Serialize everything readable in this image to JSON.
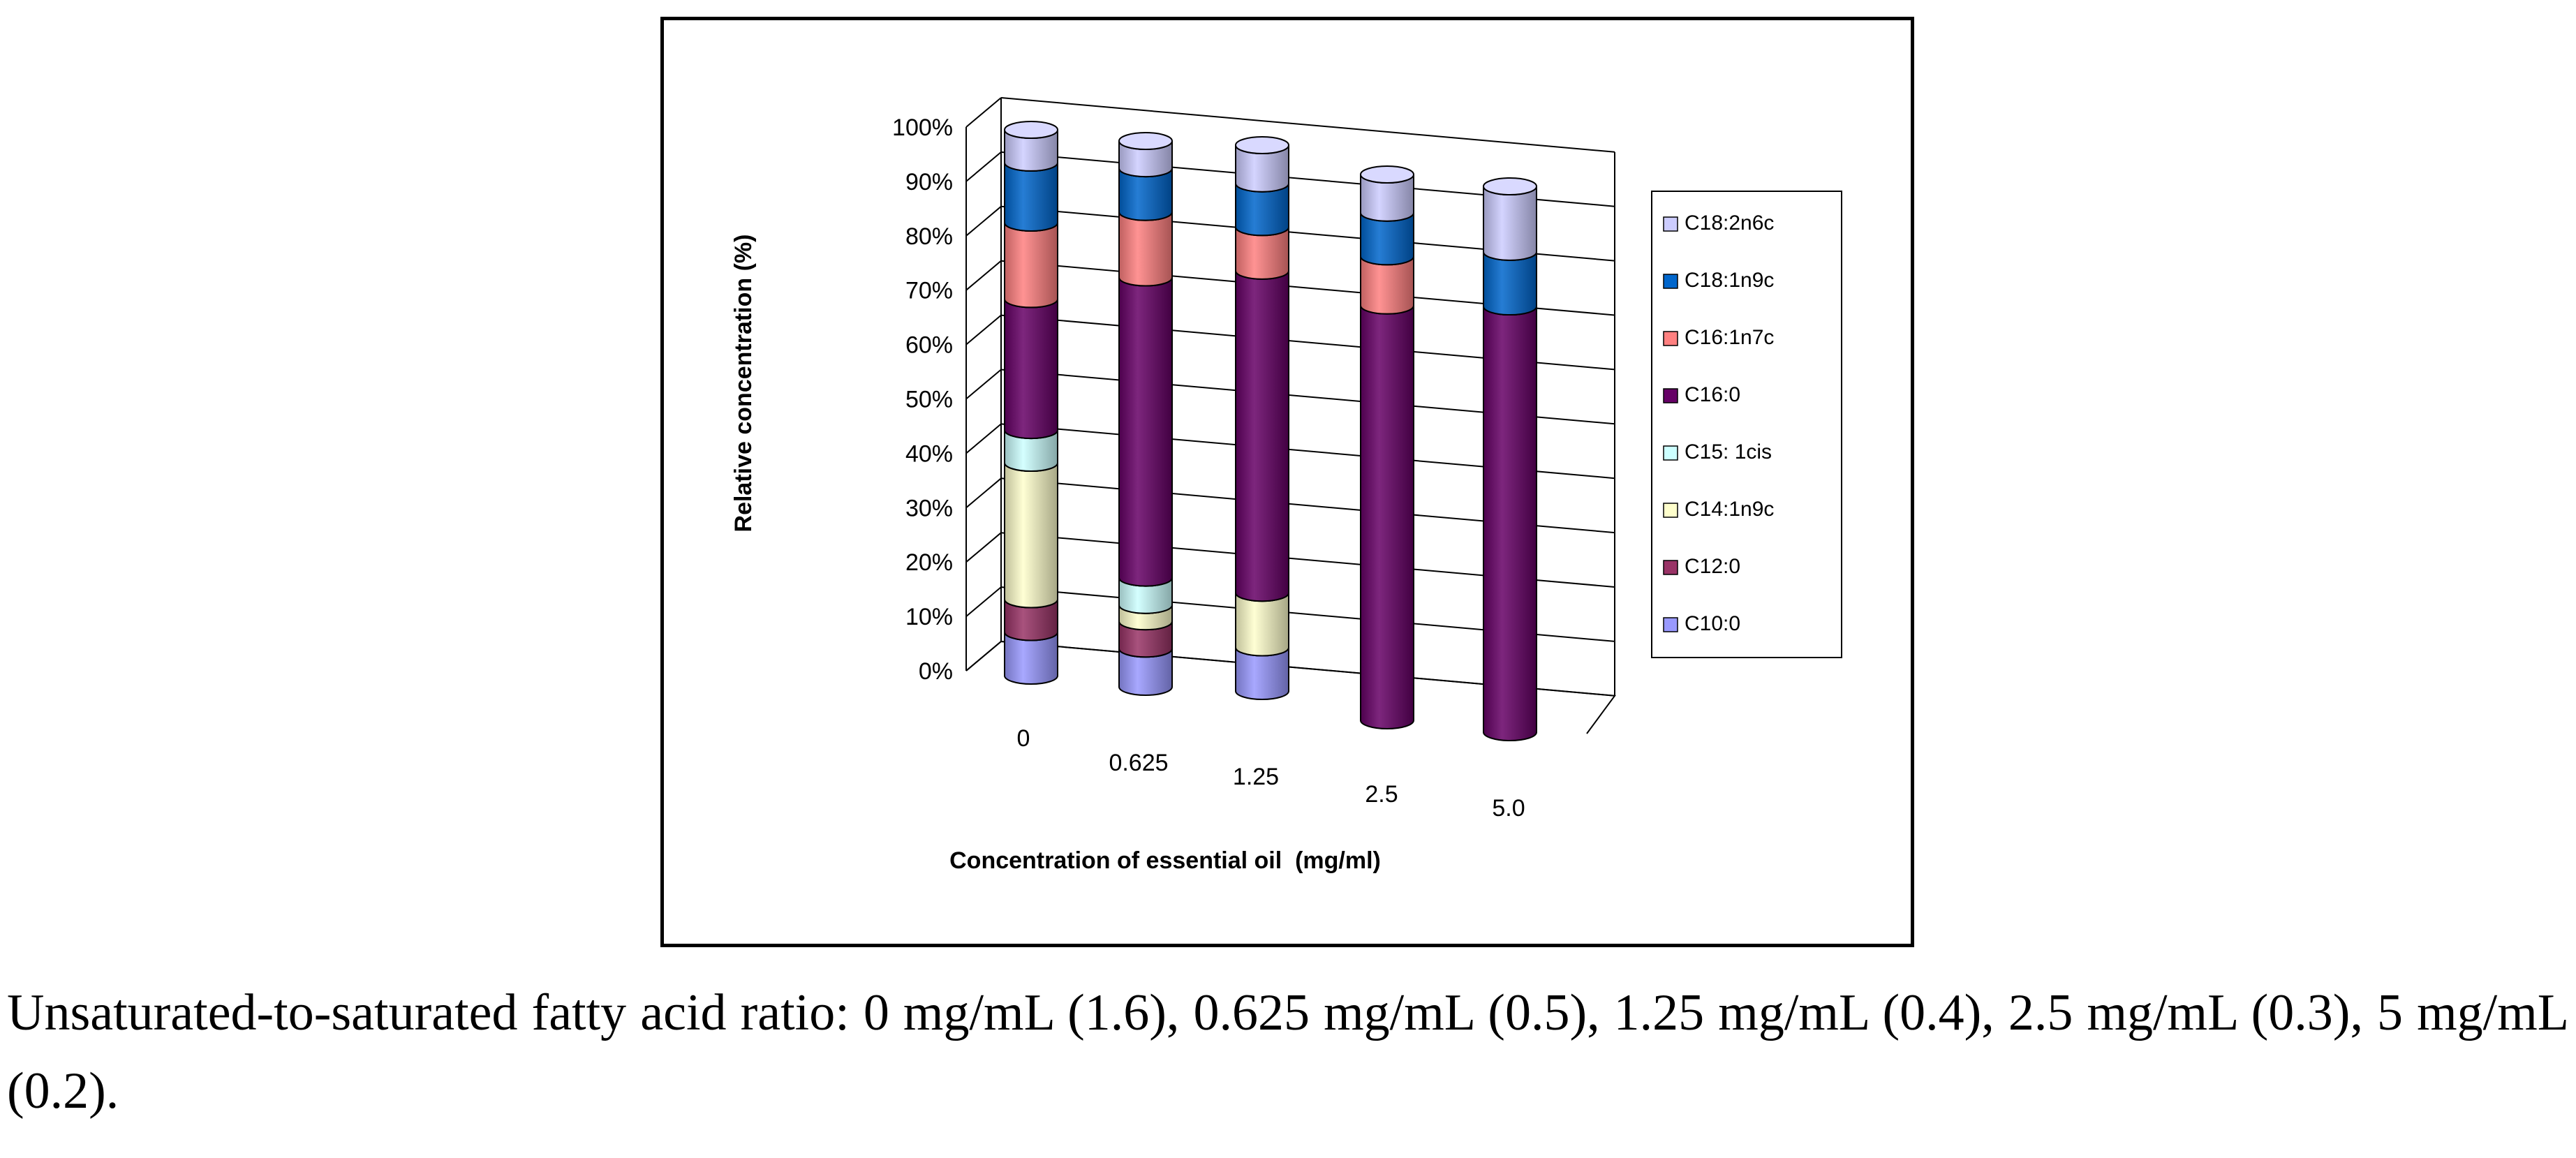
{
  "chart_data": {
    "type": "bar",
    "subtype": "100% stacked 3D cylinder",
    "categories": [
      "0",
      "0.625",
      "1.25",
      "2.5",
      "5.0"
    ],
    "xlabel": "Concentration of essential oil  (mg/ml)",
    "ylabel": "Relative concentration (%)",
    "yticks": [
      "0%",
      "10%",
      "20%",
      "30%",
      "40%",
      "50%",
      "60%",
      "70%",
      "80%",
      "90%",
      "100%"
    ],
    "ylim": [
      0,
      100
    ],
    "legend_position": "right",
    "series": [
      {
        "name": "C10:0",
        "color": "#9999FF",
        "values": [
          8,
          7,
          8,
          0,
          0
        ]
      },
      {
        "name": "C12:0",
        "color": "#993366",
        "values": [
          6,
          5,
          0,
          0,
          0
        ]
      },
      {
        "name": "C14:1n9c",
        "color": "#FFFFCC",
        "values": [
          25,
          3,
          10,
          0,
          0
        ]
      },
      {
        "name": "C15: 1cis",
        "color": "#CCFFFF",
        "values": [
          6,
          5,
          0,
          0,
          0
        ]
      },
      {
        "name": "C16:0",
        "color": "#660066",
        "values": [
          24,
          55,
          59,
          76,
          78
        ]
      },
      {
        "name": "C16:1n7c",
        "color": "#FF8080",
        "values": [
          14,
          12,
          8,
          9,
          0
        ]
      },
      {
        "name": "C18:1n9c",
        "color": "#0066CC",
        "values": [
          11,
          8,
          8,
          8,
          10
        ]
      },
      {
        "name": "C18:2n6c",
        "color": "#CCCCFF",
        "values": [
          6,
          5,
          7,
          7,
          12
        ]
      }
    ]
  },
  "caption": "Unsaturated-to-saturated fatty acid ratio: 0 mg/mL (1.6), 0.625 mg/mL (0.5), 1.25 mg/mL (0.4), 2.5 mg/mL (0.3), 5 mg/mL (0.2)."
}
